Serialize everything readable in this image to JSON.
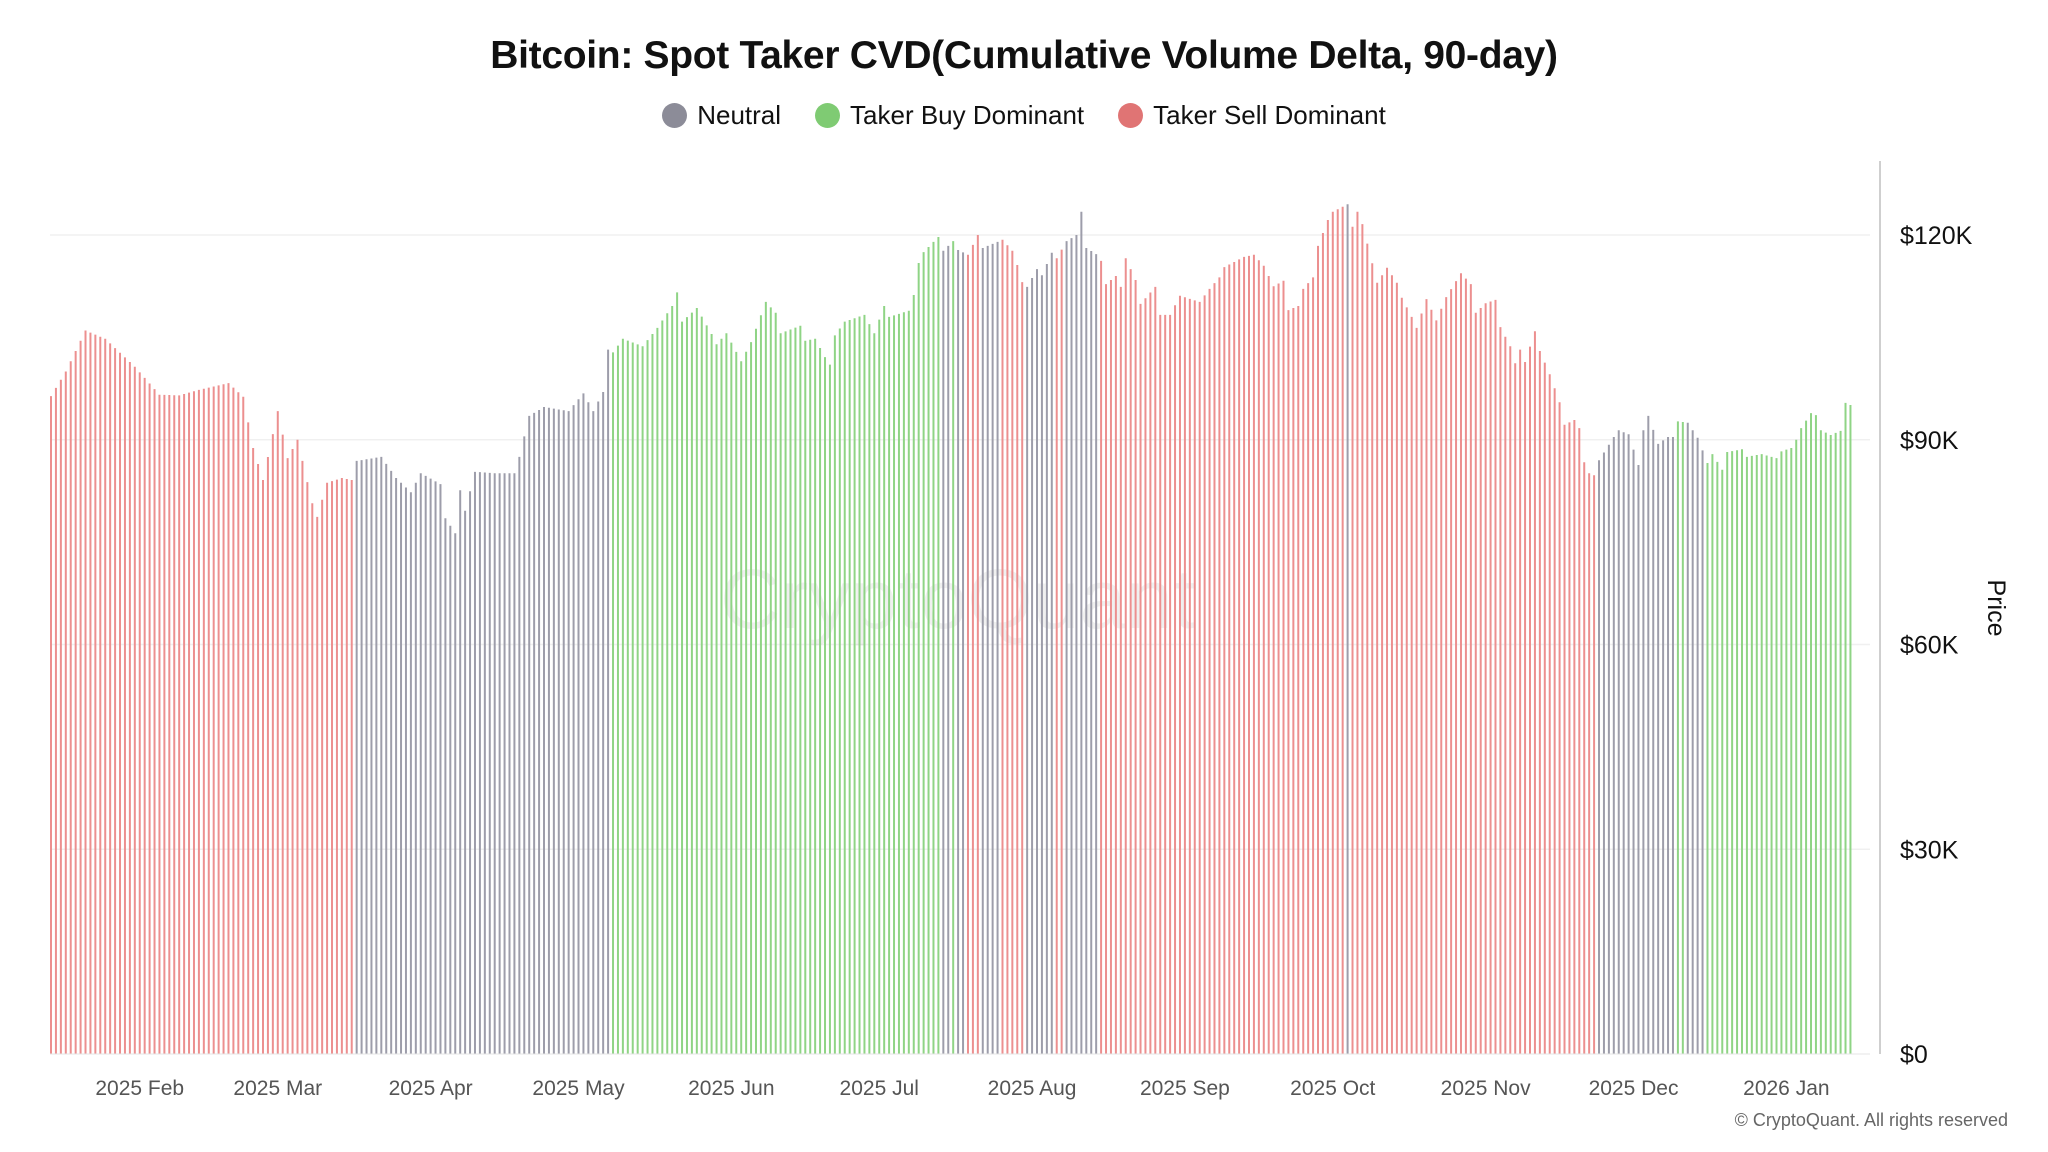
{
  "header": {
    "title": "Bitcoin: Spot Taker CVD(Cumulative Volume Delta, 90-day)"
  },
  "legend": [
    {
      "label": "Neutral",
      "key": "n",
      "color": "#8c8c98"
    },
    {
      "label": "Taker Buy Dominant",
      "key": "b",
      "color": "#7fcb73"
    },
    {
      "label": "Taker Sell Dominant",
      "key": "s",
      "color": "#e07474"
    }
  ],
  "bar_colors": {
    "n": "#9d9daa",
    "b": "#8fd485",
    "s": "#ec8f8f"
  },
  "watermark": "CryptoQuant",
  "footer": "© CryptoQuant. All rights reserved",
  "chart_data": {
    "type": "bar",
    "title": "Bitcoin: Spot Taker CVD(Cumulative Volume Delta, 90-day)",
    "ylabel": "Price",
    "y_axis_side": "right",
    "y_unit": "USD thousands",
    "ylim": [
      0,
      131
    ],
    "yticks": [
      {
        "value": 0,
        "label": "$0"
      },
      {
        "value": 30,
        "label": "$30K"
      },
      {
        "value": 60,
        "label": "$60K"
      },
      {
        "value": 90,
        "label": "$90K"
      },
      {
        "value": 120,
        "label": "$120K"
      }
    ],
    "xticks": [
      {
        "date": "2025-02-01",
        "label": "2025 Feb"
      },
      {
        "date": "2025-03-01",
        "label": "2025 Mar"
      },
      {
        "date": "2025-04-01",
        "label": "2025 Apr"
      },
      {
        "date": "2025-05-01",
        "label": "2025 May"
      },
      {
        "date": "2025-06-01",
        "label": "2025 Jun"
      },
      {
        "date": "2025-07-01",
        "label": "2025 Jul"
      },
      {
        "date": "2025-08-01",
        "label": "2025 Aug"
      },
      {
        "date": "2025-09-01",
        "label": "2025 Sep"
      },
      {
        "date": "2025-10-01",
        "label": "2025 Oct"
      },
      {
        "date": "2025-11-01",
        "label": "2025 Nov"
      },
      {
        "date": "2025-12-01",
        "label": "2025 Dec"
      },
      {
        "date": "2026-01-01",
        "label": "2026 Jan"
      }
    ],
    "grid": "horizontal",
    "legend_placement": "top",
    "points": [
      [
        "2025-01-14",
        96.4,
        "s"
      ],
      [
        "2025-01-17",
        100,
        "s"
      ],
      [
        "2025-01-21",
        106,
        "s"
      ],
      [
        "2025-01-25",
        104.8,
        "s"
      ],
      [
        "2025-01-31",
        100.7,
        "s"
      ],
      [
        "2025-02-05",
        96.6,
        "s"
      ],
      [
        "2025-02-09",
        96.5,
        "s"
      ],
      [
        "2025-02-13",
        97.3,
        "s"
      ],
      [
        "2025-02-19",
        98.3,
        "s"
      ],
      [
        "2025-02-22",
        96.3,
        "s"
      ],
      [
        "2025-02-24",
        88.8,
        "s"
      ],
      [
        "2025-02-26",
        84.1,
        "s"
      ],
      [
        "2025-03-01",
        94.2,
        "s"
      ],
      [
        "2025-03-03",
        87.3,
        "s"
      ],
      [
        "2025-03-05",
        90,
        "s"
      ],
      [
        "2025-03-08",
        80.7,
        "s"
      ],
      [
        "2025-03-09",
        78.7,
        "s"
      ],
      [
        "2025-03-11",
        83.7,
        "s"
      ],
      [
        "2025-03-14",
        84.4,
        "s"
      ],
      [
        "2025-03-16",
        84.1,
        "s"
      ],
      [
        "2025-03-17",
        86.9,
        "n"
      ],
      [
        "2025-03-22",
        87.5,
        "n"
      ],
      [
        "2025-03-25",
        84.4,
        "n"
      ],
      [
        "2025-03-28",
        82.3,
        "n"
      ],
      [
        "2025-03-30",
        85.1,
        "n"
      ],
      [
        "2025-04-03",
        83.5,
        "n"
      ],
      [
        "2025-04-04",
        78.5,
        "n"
      ],
      [
        "2025-04-06",
        76.3,
        "n"
      ],
      [
        "2025-04-07",
        82.6,
        "n"
      ],
      [
        "2025-04-08",
        79.6,
        "n"
      ],
      [
        "2025-04-10",
        85.3,
        "n"
      ],
      [
        "2025-04-14",
        85.1,
        "n"
      ],
      [
        "2025-04-18",
        85.1,
        "n"
      ],
      [
        "2025-04-19",
        87.5,
        "n"
      ],
      [
        "2025-04-21",
        93.5,
        "n"
      ],
      [
        "2025-04-24",
        94.8,
        "n"
      ],
      [
        "2025-04-29",
        94.2,
        "n"
      ],
      [
        "2025-05-02",
        96.8,
        "n"
      ],
      [
        "2025-05-04",
        94.2,
        "n"
      ],
      [
        "2025-05-06",
        97,
        "n"
      ],
      [
        "2025-05-07",
        103.2,
        "n"
      ],
      [
        "2025-05-08",
        102.8,
        "b"
      ],
      [
        "2025-05-10",
        104.8,
        "b"
      ],
      [
        "2025-05-14",
        103.7,
        "b"
      ],
      [
        "2025-05-17",
        106.4,
        "b"
      ],
      [
        "2025-05-20",
        109.6,
        "b"
      ],
      [
        "2025-05-21",
        111.6,
        "b"
      ],
      [
        "2025-05-22",
        107.3,
        "b"
      ],
      [
        "2025-05-25",
        109.3,
        "b"
      ],
      [
        "2025-05-28",
        105.5,
        "b"
      ],
      [
        "2025-05-29",
        104,
        "b"
      ],
      [
        "2025-05-31",
        105.6,
        "b"
      ],
      [
        "2025-06-03",
        101.5,
        "b"
      ],
      [
        "2025-06-05",
        104.3,
        "b"
      ],
      [
        "2025-06-08",
        110.2,
        "b"
      ],
      [
        "2025-06-10",
        108.6,
        "b"
      ],
      [
        "2025-06-11",
        105.6,
        "b"
      ],
      [
        "2025-06-15",
        106.7,
        "b"
      ],
      [
        "2025-06-16",
        104.5,
        "b"
      ],
      [
        "2025-06-18",
        104.8,
        "b"
      ],
      [
        "2025-06-20",
        102.1,
        "b"
      ],
      [
        "2025-06-21",
        101,
        "b"
      ],
      [
        "2025-06-22",
        105.3,
        "b"
      ],
      [
        "2025-06-24",
        107.3,
        "b"
      ],
      [
        "2025-06-28",
        108.3,
        "b"
      ],
      [
        "2025-06-30",
        105.6,
        "b"
      ],
      [
        "2025-07-02",
        109.6,
        "b"
      ],
      [
        "2025-07-03",
        108,
        "b"
      ],
      [
        "2025-07-07",
        108.9,
        "b"
      ],
      [
        "2025-07-08",
        111.2,
        "b"
      ],
      [
        "2025-07-09",
        115.9,
        "b"
      ],
      [
        "2025-07-10",
        117.5,
        "b"
      ],
      [
        "2025-07-12",
        119,
        "b"
      ],
      [
        "2025-07-13",
        119.7,
        "b"
      ],
      [
        "2025-07-14",
        117.7,
        "n"
      ],
      [
        "2025-07-16",
        119.1,
        "b"
      ],
      [
        "2025-07-17",
        117.8,
        "n"
      ],
      [
        "2025-07-19",
        117.1,
        "s"
      ],
      [
        "2025-07-21",
        120,
        "s"
      ],
      [
        "2025-07-22",
        118.1,
        "n"
      ],
      [
        "2025-07-26",
        119.3,
        "s"
      ],
      [
        "2025-07-28",
        117.7,
        "s"
      ],
      [
        "2025-07-29",
        115.6,
        "s"
      ],
      [
        "2025-07-30",
        113.1,
        "s"
      ],
      [
        "2025-07-31",
        112.4,
        "n"
      ],
      [
        "2025-08-02",
        115,
        "n"
      ],
      [
        "2025-08-03",
        114.1,
        "n"
      ],
      [
        "2025-08-05",
        117.4,
        "n"
      ],
      [
        "2025-08-06",
        116.6,
        "s"
      ],
      [
        "2025-08-08",
        119.1,
        "n"
      ],
      [
        "2025-08-10",
        120,
        "n"
      ],
      [
        "2025-08-11",
        123.4,
        "n"
      ],
      [
        "2025-08-12",
        118.1,
        "n"
      ],
      [
        "2025-08-14",
        117.2,
        "n"
      ],
      [
        "2025-08-15",
        116.2,
        "s"
      ],
      [
        "2025-08-16",
        112.8,
        "s"
      ],
      [
        "2025-08-18",
        114,
        "s"
      ],
      [
        "2025-08-19",
        112.4,
        "s"
      ],
      [
        "2025-08-20",
        116.6,
        "s"
      ],
      [
        "2025-08-22",
        113.4,
        "s"
      ],
      [
        "2025-08-23",
        109.9,
        "s"
      ],
      [
        "2025-08-26",
        112.4,
        "s"
      ],
      [
        "2025-08-27",
        108.3,
        "s"
      ],
      [
        "2025-08-29",
        108.3,
        "s"
      ],
      [
        "2025-08-31",
        111.1,
        "s"
      ],
      [
        "2025-09-04",
        110.2,
        "s"
      ],
      [
        "2025-09-06",
        112.1,
        "s"
      ],
      [
        "2025-09-08",
        113.8,
        "s"
      ],
      [
        "2025-09-09",
        115.3,
        "s"
      ],
      [
        "2025-09-13",
        116.8,
        "s"
      ],
      [
        "2025-09-15",
        117.1,
        "s"
      ],
      [
        "2025-09-17",
        115.5,
        "s"
      ],
      [
        "2025-09-19",
        112.5,
        "s"
      ],
      [
        "2025-09-21",
        113.3,
        "s"
      ],
      [
        "2025-09-22",
        109,
        "s"
      ],
      [
        "2025-09-24",
        109.6,
        "s"
      ],
      [
        "2025-09-25",
        112.1,
        "s"
      ],
      [
        "2025-09-27",
        113.8,
        "s"
      ],
      [
        "2025-09-28",
        118.4,
        "s"
      ],
      [
        "2025-09-30",
        122.2,
        "s"
      ],
      [
        "2025-10-01",
        123.4,
        "s"
      ],
      [
        "2025-10-04",
        124.5,
        "n"
      ],
      [
        "2025-10-05",
        121.2,
        "s"
      ],
      [
        "2025-10-06",
        123.4,
        "s"
      ],
      [
        "2025-10-07",
        121.6,
        "s"
      ],
      [
        "2025-10-10",
        113,
        "s"
      ],
      [
        "2025-10-12",
        115.2,
        "s"
      ],
      [
        "2025-10-14",
        113,
        "s"
      ],
      [
        "2025-10-15",
        110.8,
        "s"
      ],
      [
        "2025-10-17",
        108,
        "s"
      ],
      [
        "2025-10-18",
        106.4,
        "s"
      ],
      [
        "2025-10-20",
        110.6,
        "s"
      ],
      [
        "2025-10-22",
        107.5,
        "s"
      ],
      [
        "2025-10-24",
        110.9,
        "s"
      ],
      [
        "2025-10-27",
        114.4,
        "s"
      ],
      [
        "2025-10-29",
        112.8,
        "s"
      ],
      [
        "2025-10-30",
        108.6,
        "s"
      ],
      [
        "2025-11-01",
        110,
        "s"
      ],
      [
        "2025-11-03",
        110.5,
        "s"
      ],
      [
        "2025-11-04",
        106.5,
        "s"
      ],
      [
        "2025-11-06",
        103.7,
        "s"
      ],
      [
        "2025-11-07",
        101.2,
        "s"
      ],
      [
        "2025-11-08",
        103.2,
        "s"
      ],
      [
        "2025-11-09",
        101.4,
        "s"
      ],
      [
        "2025-11-11",
        105.9,
        "s"
      ],
      [
        "2025-11-12",
        103,
        "s"
      ],
      [
        "2025-11-14",
        99.6,
        "s"
      ],
      [
        "2025-11-16",
        95.5,
        "s"
      ],
      [
        "2025-11-17",
        92.2,
        "s"
      ],
      [
        "2025-11-19",
        92.9,
        "s"
      ],
      [
        "2025-11-20",
        91.7,
        "s"
      ],
      [
        "2025-11-21",
        86.7,
        "s"
      ],
      [
        "2025-11-22",
        85.1,
        "s"
      ],
      [
        "2025-11-23",
        84.8,
        "s"
      ],
      [
        "2025-11-24",
        87,
        "n"
      ],
      [
        "2025-11-27",
        90.4,
        "n"
      ],
      [
        "2025-11-28",
        91.4,
        "n"
      ],
      [
        "2025-11-30",
        90.8,
        "n"
      ],
      [
        "2025-12-02",
        86.3,
        "n"
      ],
      [
        "2025-12-03",
        91.4,
        "n"
      ],
      [
        "2025-12-04",
        93.5,
        "n"
      ],
      [
        "2025-12-06",
        89.4,
        "n"
      ],
      [
        "2025-12-08",
        90.4,
        "n"
      ],
      [
        "2025-12-09",
        90.4,
        "n"
      ],
      [
        "2025-12-10",
        92.7,
        "b"
      ],
      [
        "2025-12-12",
        92.5,
        "n"
      ],
      [
        "2025-12-14",
        90.3,
        "n"
      ],
      [
        "2025-12-16",
        86.6,
        "b"
      ],
      [
        "2025-12-17",
        87.9,
        "b"
      ],
      [
        "2025-12-19",
        85.6,
        "b"
      ],
      [
        "2025-12-20",
        88.2,
        "b"
      ],
      [
        "2025-12-23",
        88.6,
        "b"
      ],
      [
        "2025-12-24",
        87.5,
        "b"
      ],
      [
        "2025-12-27",
        87.9,
        "b"
      ],
      [
        "2025-12-30",
        87.3,
        "b"
      ],
      [
        "2025-12-31",
        88.3,
        "b"
      ],
      [
        "2026-01-02",
        88.8,
        "b"
      ],
      [
        "2026-01-03",
        90,
        "b"
      ],
      [
        "2026-01-04",
        91.7,
        "b"
      ],
      [
        "2026-01-06",
        93.9,
        "b"
      ],
      [
        "2026-01-07",
        93.6,
        "b"
      ],
      [
        "2026-01-08",
        91.4,
        "b"
      ],
      [
        "2026-01-10",
        90.7,
        "b"
      ],
      [
        "2026-01-12",
        91.3,
        "b"
      ],
      [
        "2026-01-13",
        95.4,
        "b"
      ],
      [
        "2026-01-14",
        95.1,
        "b"
      ]
    ]
  }
}
